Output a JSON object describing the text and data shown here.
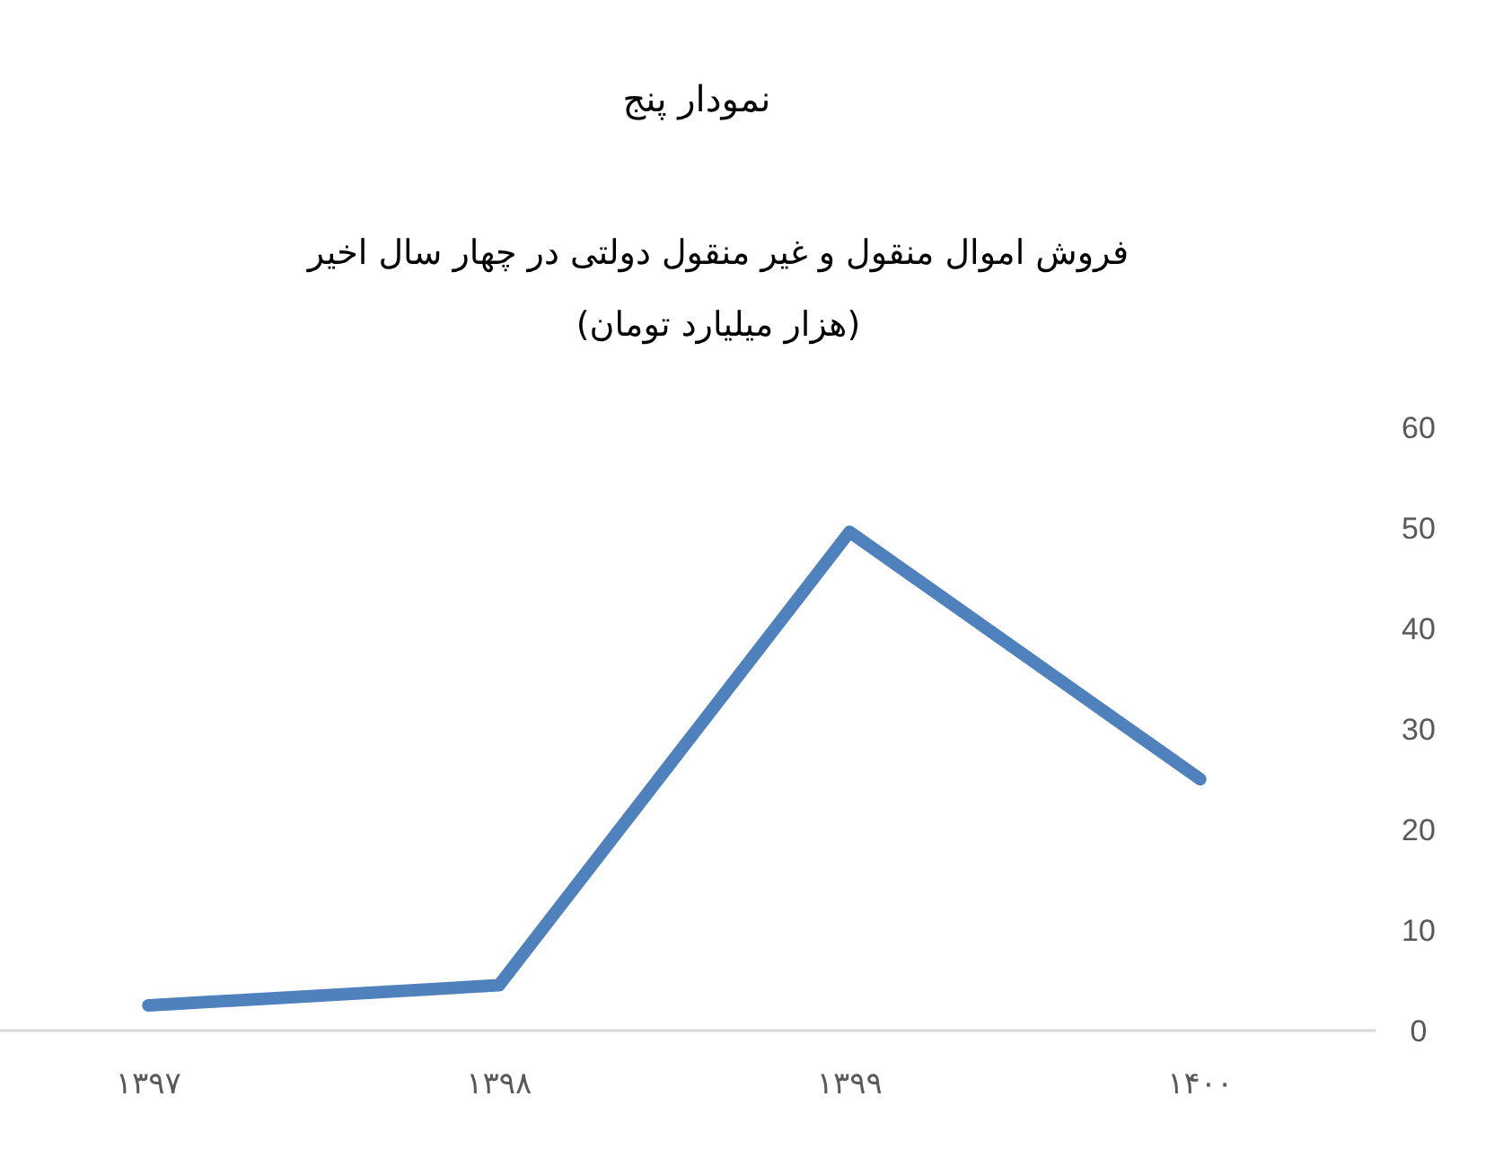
{
  "chart_data": {
    "type": "line",
    "title": "نمودار پنج",
    "subtitle": "فروش اموال منقول و غیر منقول دولتی در چهار سال اخیر\n(هزار میلیارد تومان)",
    "categories": [
      "۱۳۹۷",
      "۱۳۹۸",
      "۱۳۹۹",
      "۱۴۰۰"
    ],
    "series": [
      {
        "color": "#4f81bd",
        "values": [
          2.5,
          4.5,
          49.6,
          25
        ]
      }
    ],
    "ylim": [
      0,
      60
    ],
    "yticks": [
      0,
      10,
      20,
      30,
      40,
      50,
      60
    ],
    "line_style": "solid"
  }
}
